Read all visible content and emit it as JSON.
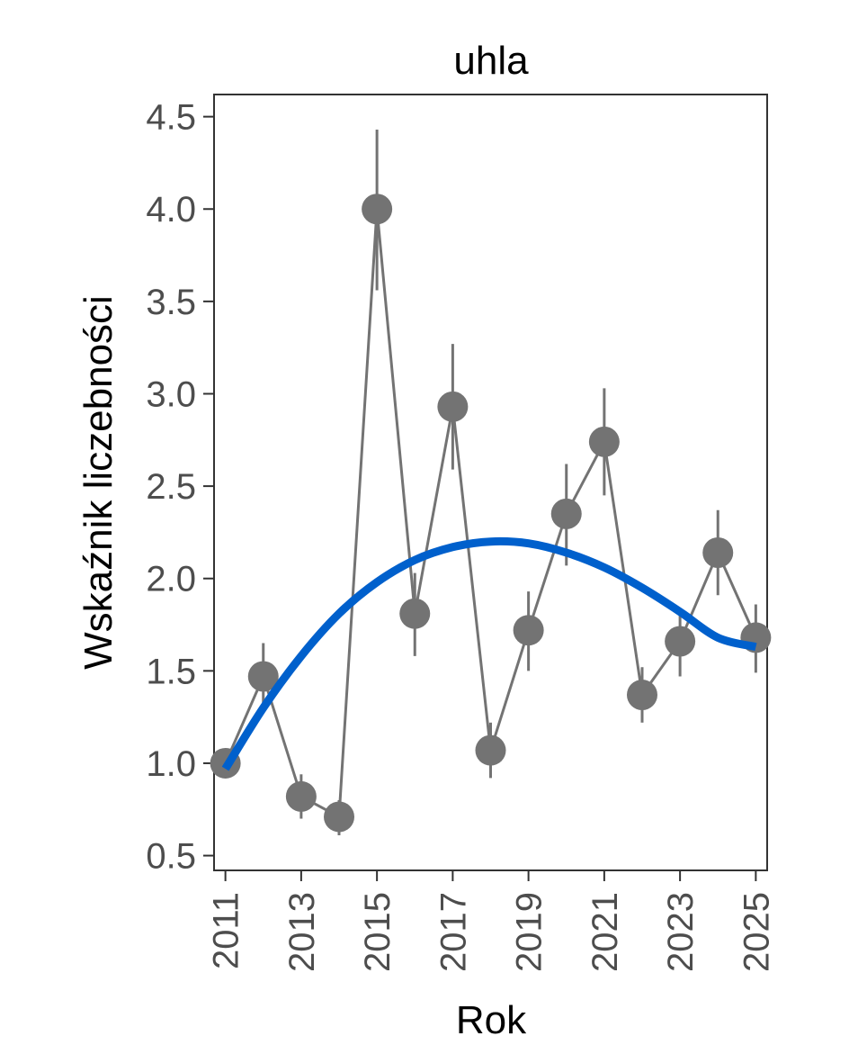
{
  "chart_data": {
    "type": "line",
    "title": "uhla",
    "xlabel": "Rok",
    "ylabel": "Wskaźnik liczebności",
    "xlim": [
      2010.7,
      2025.3
    ],
    "ylim": [
      0.42,
      4.62
    ],
    "x_ticks": [
      2011,
      2013,
      2015,
      2017,
      2019,
      2021,
      2023,
      2025
    ],
    "y_ticks": [
      0.5,
      1.0,
      1.5,
      2.0,
      2.5,
      3.0,
      3.5,
      4.0,
      4.5
    ],
    "y_tick_labels": [
      "0.5",
      "1.0",
      "1.5",
      "2.0",
      "2.5",
      "3.0",
      "3.5",
      "4.0",
      "4.5"
    ],
    "grid": false,
    "series": [
      {
        "kind": "points-with-error-bars",
        "color": "#737373",
        "x": [
          2011,
          2012,
          2013,
          2014,
          2015,
          2016,
          2017,
          2018,
          2019,
          2020,
          2021,
          2022,
          2023,
          2024,
          2025
        ],
        "y": [
          1.0,
          1.47,
          0.82,
          0.71,
          4.0,
          1.81,
          2.93,
          1.07,
          1.72,
          2.35,
          2.74,
          1.37,
          1.66,
          2.14,
          1.68
        ],
        "y_low": [
          1.0,
          1.31,
          0.7,
          0.61,
          3.56,
          1.58,
          2.59,
          0.92,
          1.5,
          2.07,
          2.45,
          1.22,
          1.47,
          1.91,
          1.49
        ],
        "y_high": [
          1.0,
          1.65,
          0.94,
          0.8,
          4.43,
          2.03,
          3.27,
          1.22,
          1.93,
          2.62,
          3.03,
          1.52,
          1.84,
          2.37,
          1.86
        ]
      },
      {
        "kind": "trend",
        "color": "#0060cc",
        "x": [
          2011,
          2012,
          2013,
          2014,
          2015,
          2016,
          2017,
          2018,
          2019,
          2020,
          2021,
          2022,
          2023,
          2024,
          2025
        ],
        "y": [
          0.97,
          1.3,
          1.58,
          1.81,
          1.98,
          2.1,
          2.17,
          2.2,
          2.19,
          2.14,
          2.06,
          1.95,
          1.82,
          1.68,
          1.63
        ]
      }
    ]
  }
}
